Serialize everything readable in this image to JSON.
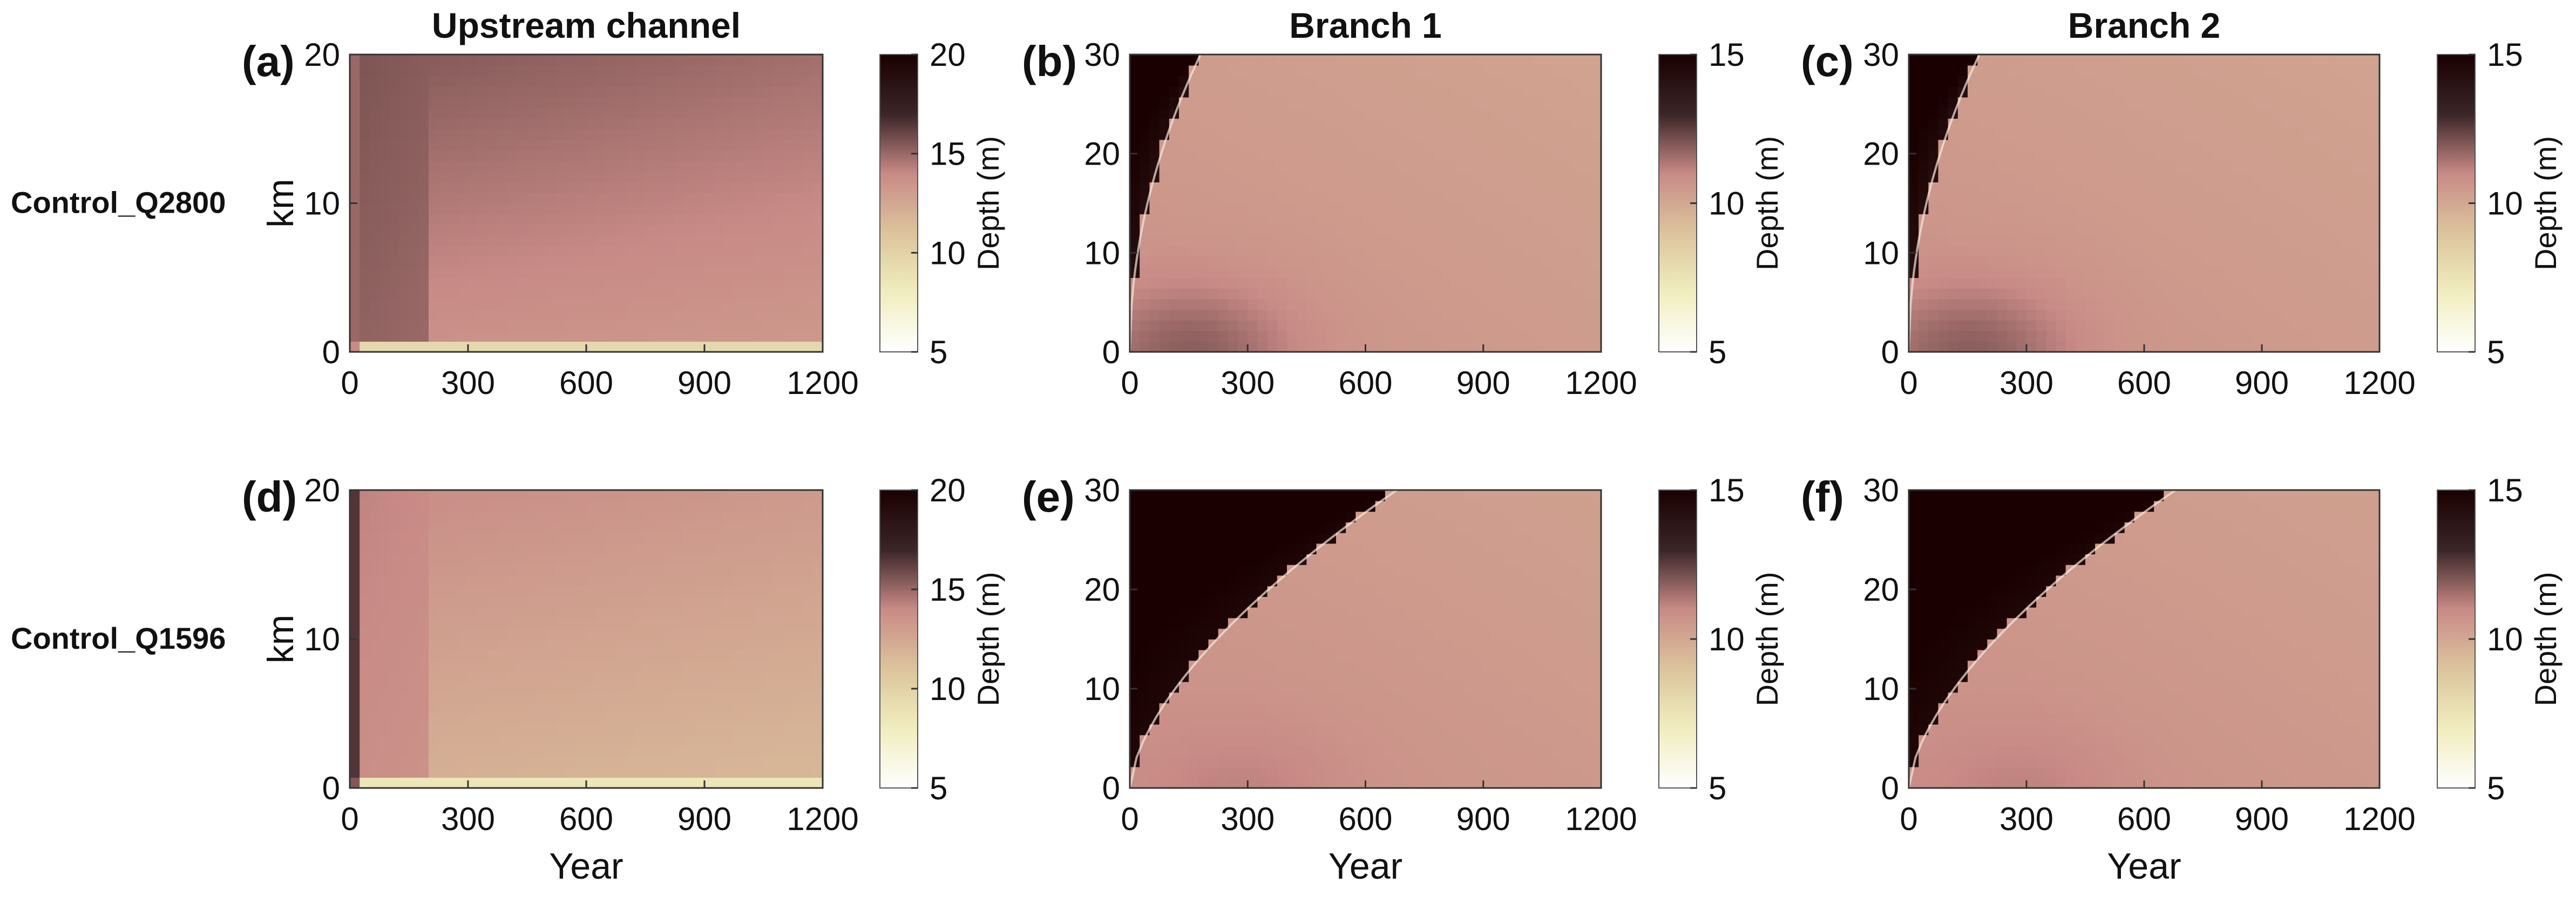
{
  "figure": {
    "column_titles": [
      "Upstream channel",
      "Branch 1",
      "Branch 2"
    ],
    "row_labels": [
      "Control_Q2800",
      "Control_Q1596"
    ]
  },
  "colormap": {
    "stops": [
      "#ffffff",
      "#f0edbe",
      "#dcc49d",
      "#c88a86",
      "#3a2527",
      "#1a0000"
    ]
  },
  "chart_data": [
    {
      "type": "heatmap",
      "panel_label": "(a)",
      "title": "Upstream channel",
      "xlabel": "",
      "ylabel": "km",
      "x_ticks": [
        0,
        300,
        600,
        900,
        1200
      ],
      "xlim": [
        0,
        1200
      ],
      "y_ticks": [
        0,
        10,
        20
      ],
      "ylim": [
        0,
        20
      ],
      "colorbar": {
        "label": "Depth (m)",
        "ticks": [
          5,
          10,
          15,
          20
        ],
        "range": [
          5,
          20
        ]
      },
      "field": {
        "kind": "upstream",
        "transition_year": 200,
        "band_km": 1.0,
        "early_depth": 15.6,
        "late_depth": 13.6,
        "late_upper_depth": 14.8,
        "band_depth": 9.0,
        "near_zero_depth": 14.0
      }
    },
    {
      "type": "heatmap",
      "panel_label": "(b)",
      "title": "Branch 1",
      "xlabel": "",
      "ylabel": "",
      "x_ticks": [
        0,
        300,
        600,
        900,
        1200
      ],
      "xlim": [
        0,
        1200
      ],
      "y_ticks": [
        0,
        10,
        20,
        30
      ],
      "ylim": [
        0,
        30
      ],
      "colorbar": {
        "label": "Depth (m)",
        "ticks": [
          5,
          10,
          15
        ],
        "range": [
          5,
          15
        ]
      },
      "field": {
        "kind": "branch",
        "front_end_year": 180,
        "front_power": 0.5,
        "ahead_depth_top": 15.5,
        "ahead_depth_bottom": 13.6,
        "behind_depth": 10.4,
        "bulge_depth": 11.6,
        "bulge_year": 160
      }
    },
    {
      "type": "heatmap",
      "panel_label": "(c)",
      "title": "Branch 2",
      "xlabel": "",
      "ylabel": "",
      "x_ticks": [
        0,
        300,
        600,
        900,
        1200
      ],
      "xlim": [
        0,
        1200
      ],
      "y_ticks": [
        0,
        10,
        20,
        30
      ],
      "ylim": [
        0,
        30
      ],
      "colorbar": {
        "label": "Depth (m)",
        "ticks": [
          5,
          10,
          15
        ],
        "range": [
          5,
          15
        ]
      },
      "field": {
        "kind": "branch",
        "front_end_year": 180,
        "front_power": 0.5,
        "ahead_depth_top": 15.5,
        "ahead_depth_bottom": 13.6,
        "behind_depth": 10.4,
        "bulge_depth": 11.6,
        "bulge_year": 160
      }
    },
    {
      "type": "heatmap",
      "panel_label": "(d)",
      "title": "",
      "xlabel": "Year",
      "ylabel": "km",
      "x_ticks": [
        0,
        300,
        600,
        900,
        1200
      ],
      "xlim": [
        0,
        1200
      ],
      "y_ticks": [
        0,
        10,
        20
      ],
      "ylim": [
        0,
        20
      ],
      "colorbar": {
        "label": "Depth (m)",
        "ticks": [
          5,
          10,
          15,
          20
        ],
        "range": [
          5,
          20
        ]
      },
      "field": {
        "kind": "upstream",
        "transition_year": 200,
        "band_km": 1.0,
        "early_depth": 14.2,
        "late_depth": 12.0,
        "late_upper_depth": 13.2,
        "band_depth": 8.0,
        "near_zero_depth": 15.5
      }
    },
    {
      "type": "heatmap",
      "panel_label": "(e)",
      "title": "",
      "xlabel": "Year",
      "ylabel": "",
      "x_ticks": [
        0,
        300,
        600,
        900,
        1200
      ],
      "xlim": [
        0,
        1200
      ],
      "y_ticks": [
        0,
        10,
        20,
        30
      ],
      "ylim": [
        0,
        30
      ],
      "colorbar": {
        "label": "Depth (m)",
        "ticks": [
          5,
          10,
          15
        ],
        "range": [
          5,
          15
        ]
      },
      "field": {
        "kind": "branch",
        "front_end_year": 680,
        "front_power": 0.62,
        "ahead_depth_top": 15.6,
        "ahead_depth_bottom": 14.1,
        "behind_depth": 10.5,
        "bulge_depth": 10.9,
        "bulge_year": 300
      }
    },
    {
      "type": "heatmap",
      "panel_label": "(f)",
      "title": "",
      "xlabel": "Year",
      "ylabel": "",
      "x_ticks": [
        0,
        300,
        600,
        900,
        1200
      ],
      "xlim": [
        0,
        1200
      ],
      "y_ticks": [
        0,
        10,
        20,
        30
      ],
      "ylim": [
        0,
        30
      ],
      "colorbar": {
        "label": "Depth (m)",
        "ticks": [
          5,
          10,
          15
        ],
        "range": [
          5,
          15
        ]
      },
      "field": {
        "kind": "branch",
        "front_end_year": 680,
        "front_power": 0.62,
        "ahead_depth_top": 15.6,
        "ahead_depth_bottom": 14.1,
        "behind_depth": 10.5,
        "bulge_depth": 10.9,
        "bulge_year": 300
      }
    }
  ]
}
